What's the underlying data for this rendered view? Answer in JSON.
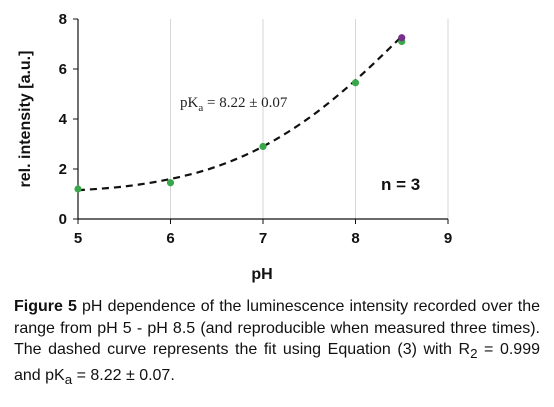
{
  "chart_data": {
    "type": "scatter",
    "xlabel": "pH",
    "ylabel": "rel. intensity [a.u.]",
    "xlim": [
      5,
      9
    ],
    "ylim": [
      0,
      8
    ],
    "xticks": [
      "5",
      "6",
      "7",
      "8",
      "9"
    ],
    "yticks": [
      "0",
      "2",
      "4",
      "6",
      "8"
    ],
    "grid": "vertical",
    "series": [
      {
        "color": "#3aa84a",
        "x": [
          5,
          6,
          7,
          8,
          8.5
        ],
        "y": [
          1.2,
          1.45,
          2.9,
          5.45,
          7.1
        ]
      },
      {
        "color": "#7a2e8c",
        "x": [
          8.5
        ],
        "y": [
          7.25
        ]
      }
    ],
    "fit": {
      "style": "dashed",
      "color": "#111111",
      "x": [
        5,
        5.5,
        6,
        6.5,
        7,
        7.5,
        8,
        8.5
      ],
      "y": [
        1.15,
        1.3,
        1.6,
        2.1,
        2.9,
        4.05,
        5.55,
        7.3
      ]
    },
    "annotations": {
      "pka_prefix": "pK",
      "pka_sub": "a",
      "pka_value": " = 8.22 ± 0.07",
      "n": "n = 3"
    }
  },
  "caption": {
    "label": "Figure 5",
    "text": " pH dependence of the luminescence intensity recorded over the range from pH 5 - pH 8.5 (and reproducible when measured three times). The dashed curve represents the fit using Equation (3) with R",
    "r_sub": "2",
    "text2": " = 0.999 and pK",
    "pka_sub": "a",
    "text3": " = 8.22 ± 0.07."
  }
}
